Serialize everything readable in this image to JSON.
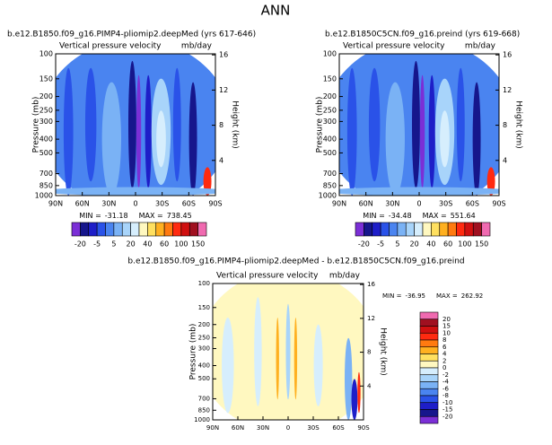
{
  "page_title": "ANN",
  "chart_data": [
    {
      "type": "contour",
      "title": "b.e12.B1850.f09_g16.PIMP4-pliomip2.deepMed (yrs 617-646)",
      "subtitle_left": "Vertical pressure velocity",
      "subtitle_right": "mb/day",
      "ylabel": "Pressure (mb)",
      "y2label": "Height (km)",
      "log_y": true,
      "xlim": [
        90,
        -90
      ],
      "xticks": [
        {
          "value": 90,
          "label": "90N"
        },
        {
          "value": 60,
          "label": "60N"
        },
        {
          "value": 30,
          "label": "30N"
        },
        0,
        {
          "value": -30,
          "label": "30S"
        },
        {
          "value": -60,
          "label": "60S"
        },
        {
          "value": -90,
          "label": "90S"
        }
      ],
      "ylim": [
        1000,
        100
      ],
      "yticks": [
        100,
        150,
        200,
        250,
        300,
        400,
        500,
        700,
        850,
        1000
      ],
      "y2lim": [
        0,
        16.12
      ],
      "y2ticks": [
        4,
        8,
        12,
        16
      ],
      "min_label": "MIN =",
      "min": -31.18,
      "max_label": "MAX =",
      "max": 738.45,
      "colorbar": {
        "orientation": "horizontal",
        "colors": [
          "#7b2fd6",
          "#16168c",
          "#1e1ec8",
          "#2a52e8",
          "#4a84f0",
          "#7ab2f5",
          "#a8d4fa",
          "#d6eefd",
          "#fff8c0",
          "#ffe060",
          "#ffb020",
          "#ff7a10",
          "#ff2a10",
          "#d01010",
          "#a01020",
          "#f06ab0"
        ],
        "ticks": [
          -20,
          -5,
          5,
          20,
          40,
          60,
          100,
          150
        ]
      }
    },
    {
      "type": "contour",
      "title": "b.e12.B1850C5CN.f09_g16.preind (yrs 619-668)",
      "subtitle_left": "Vertical pressure velocity",
      "subtitle_right": "mb/day",
      "ylabel": "Pressure (mb)",
      "y2label": "Height (km)",
      "log_y": true,
      "xlim": [
        90,
        -90
      ],
      "xticks": [
        {
          "value": 90,
          "label": "90N"
        },
        {
          "value": 60,
          "label": "60N"
        },
        {
          "value": 30,
          "label": "30N"
        },
        0,
        {
          "value": -30,
          "label": "30S"
        },
        {
          "value": -60,
          "label": "60S"
        },
        {
          "value": -90,
          "label": "90S"
        }
      ],
      "ylim": [
        1000,
        100
      ],
      "yticks": [
        100,
        150,
        200,
        250,
        300,
        400,
        500,
        700,
        850,
        1000
      ],
      "y2lim": [
        0,
        16.12
      ],
      "y2ticks": [
        4,
        8,
        12,
        16
      ],
      "min_label": "MIN =",
      "min": -34.48,
      "max_label": "MAX =",
      "max": 551.64,
      "colorbar": {
        "orientation": "horizontal",
        "colors": [
          "#7b2fd6",
          "#16168c",
          "#1e1ec8",
          "#2a52e8",
          "#4a84f0",
          "#7ab2f5",
          "#a8d4fa",
          "#d6eefd",
          "#fff8c0",
          "#ffe060",
          "#ffb020",
          "#ff7a10",
          "#ff2a10",
          "#d01010",
          "#a01020",
          "#f06ab0"
        ],
        "ticks": [
          -20,
          -5,
          5,
          20,
          40,
          60,
          100,
          150
        ]
      }
    },
    {
      "type": "contour",
      "title": "b.e12.B1850.f09_g16.PIMP4-pliomip2.deepMed - b.e12.B1850C5CN.f09_g16.preind",
      "subtitle_left": "Vertical pressure velocity",
      "subtitle_right": "mb/day",
      "ylabel": "Pressure (mb)",
      "y2label": "Height (km)",
      "log_y": true,
      "xlim": [
        90,
        -90
      ],
      "xticks": [
        {
          "value": 90,
          "label": "90N"
        },
        {
          "value": 60,
          "label": "60N"
        },
        {
          "value": 30,
          "label": "30N"
        },
        0,
        {
          "value": -30,
          "label": "30S"
        },
        {
          "value": -60,
          "label": "60S"
        },
        {
          "value": -90,
          "label": "90S"
        }
      ],
      "ylim": [
        1000,
        100
      ],
      "yticks": [
        100,
        150,
        200,
        250,
        300,
        400,
        500,
        700,
        850,
        1000
      ],
      "y2lim": [
        0,
        16.12
      ],
      "y2ticks": [
        4,
        8,
        12,
        16
      ],
      "min_label": "MIN =",
      "min": -36.95,
      "max_label": "MAX =",
      "max": 262.92,
      "colorbar": {
        "orientation": "vertical",
        "colors": [
          "#f06ab0",
          "#a01020",
          "#d01010",
          "#ff2a10",
          "#ff7a10",
          "#ffb020",
          "#ffe060",
          "#fff8c0",
          "#d6eefd",
          "#a8d4fa",
          "#7ab2f5",
          "#4a84f0",
          "#2a52e8",
          "#1e1ec8",
          "#16168c",
          "#7b2fd6"
        ],
        "ticks": [
          20,
          15,
          10,
          8,
          6,
          4,
          2,
          0,
          -2,
          -4,
          -6,
          -8,
          -10,
          -15,
          -20
        ]
      }
    }
  ]
}
